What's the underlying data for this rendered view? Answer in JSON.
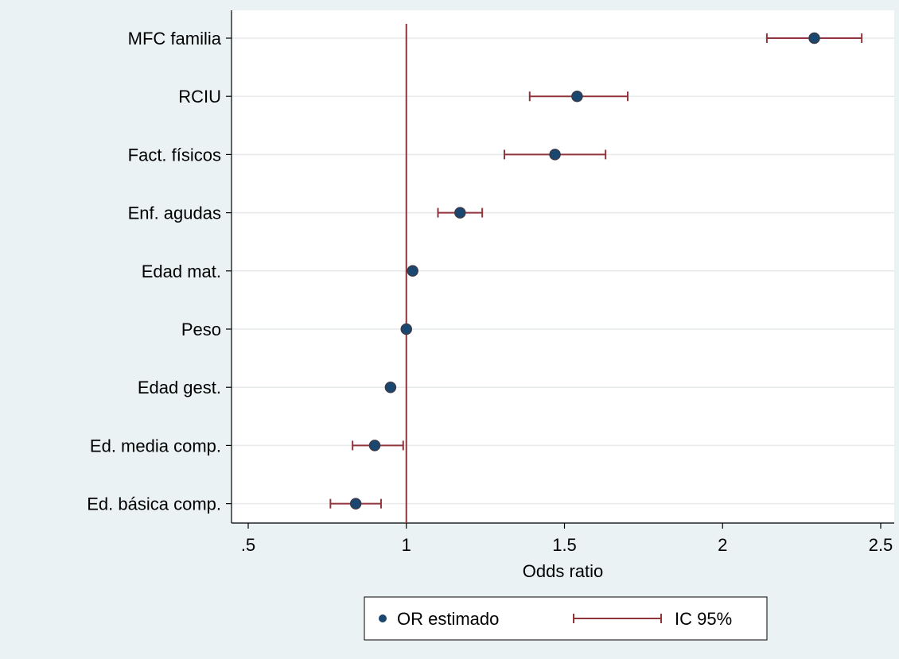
{
  "chart_data": {
    "type": "scatter",
    "title": "",
    "xlabel": "Odds ratio",
    "ylabel": "",
    "xlim": [
      0.5,
      2.55
    ],
    "xticks": [
      0.5,
      1,
      1.5,
      2,
      2.5
    ],
    "xtick_labels": [
      ".5",
      "1",
      "1.5",
      "2",
      "2.5"
    ],
    "reference_line": 1,
    "grid": true,
    "legend_position": "bottom",
    "categories": [
      "MFC familia",
      "RCIU",
      "Fact. físicos",
      "Enf. agudas",
      "Edad mat.",
      "Peso",
      "Edad gest.",
      "Ed. media comp.",
      "Ed. básica comp."
    ],
    "series": [
      {
        "name": "OR estimado",
        "values": [
          2.29,
          1.54,
          1.47,
          1.17,
          1.02,
          1.0,
          0.95,
          0.9,
          0.84
        ]
      },
      {
        "name": "IC 95%",
        "lower": [
          2.14,
          1.39,
          1.31,
          1.1,
          null,
          null,
          null,
          0.83,
          0.76
        ],
        "upper": [
          2.44,
          1.7,
          1.63,
          1.24,
          null,
          null,
          null,
          0.99,
          0.92
        ]
      }
    ]
  },
  "legend": {
    "point_label": "OR estimado",
    "ci_label": "IC 95%"
  },
  "colors": {
    "background": "#eaf2f3",
    "plot_background": "#ffffff",
    "marker": "#1a476f",
    "marker_outline": "#3a3a4a",
    "ci": "#90353b",
    "reference_line": "#90353b",
    "grid": "#e6eaeb",
    "axis": "#000000"
  }
}
